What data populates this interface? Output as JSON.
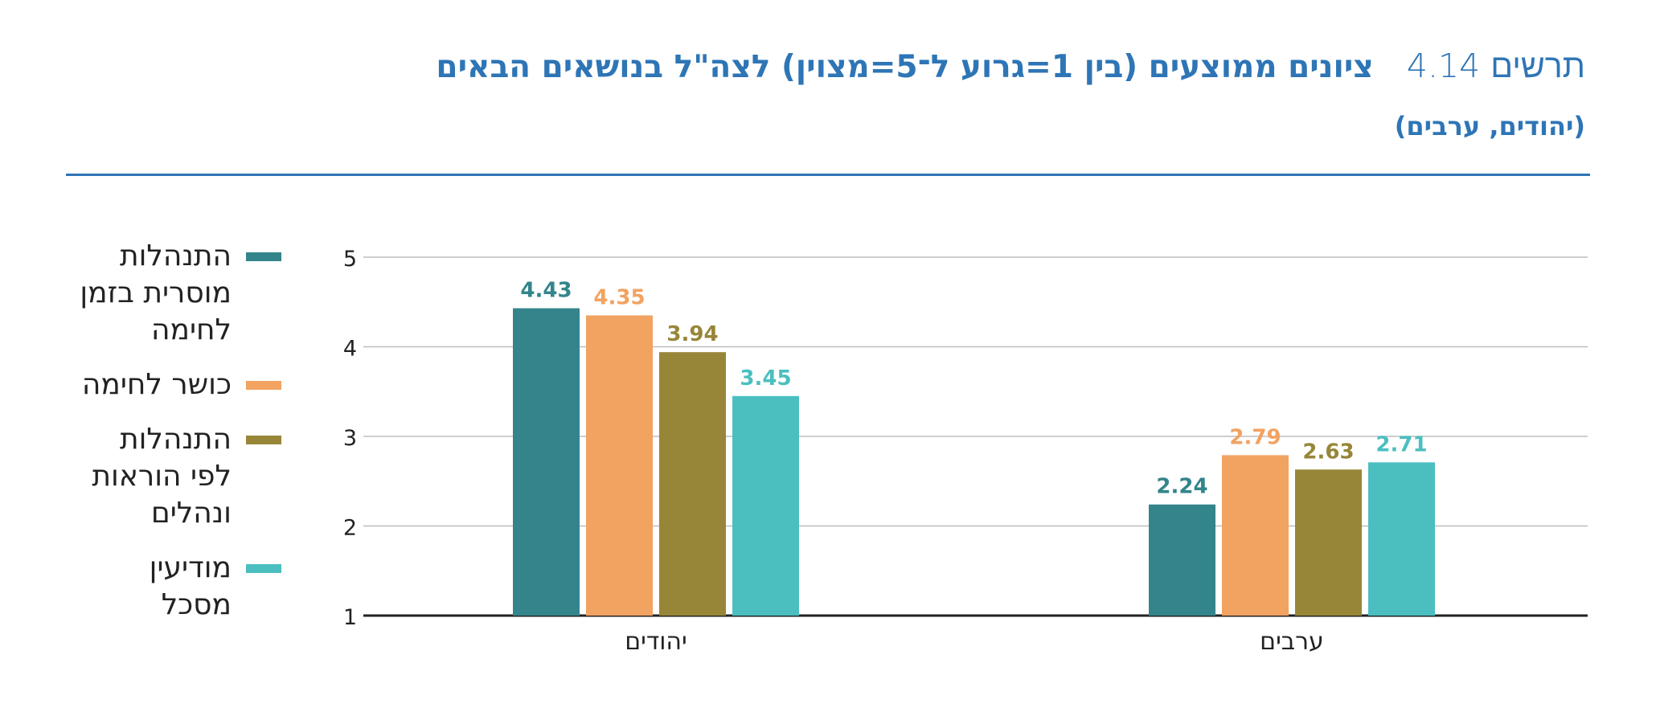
{
  "header": {
    "figure_label": "תרשים 4.14",
    "title": "ציונים ממוצעים (בין 1=גרוע ל־5=מצוין) לצה\"ל בנושאים הבאים",
    "subtitle": "(יהודים, ערבים)"
  },
  "chart_data": {
    "type": "bar",
    "categories": [
      "יהודים",
      "ערבים"
    ],
    "series": [
      {
        "name": "התנהלות\nמוסרית בזמן\nלחימה",
        "color": "#33858b",
        "values": [
          4.43,
          2.24
        ]
      },
      {
        "name": "כושר לחימה",
        "color": "#f2a261",
        "values": [
          4.35,
          2.79
        ]
      },
      {
        "name": "התנהלות\nלפי הוראות\nונהלים",
        "color": "#978638",
        "values": [
          3.94,
          2.63
        ]
      },
      {
        "name": "מודיעין\nמסכל",
        "color": "#4bbfbf",
        "values": [
          3.45,
          2.71
        ]
      }
    ],
    "ylim": [
      1,
      5
    ],
    "yticks": [
      1,
      2,
      3,
      4,
      5
    ],
    "grid": true,
    "legend_position": "left",
    "data_labels": true
  }
}
